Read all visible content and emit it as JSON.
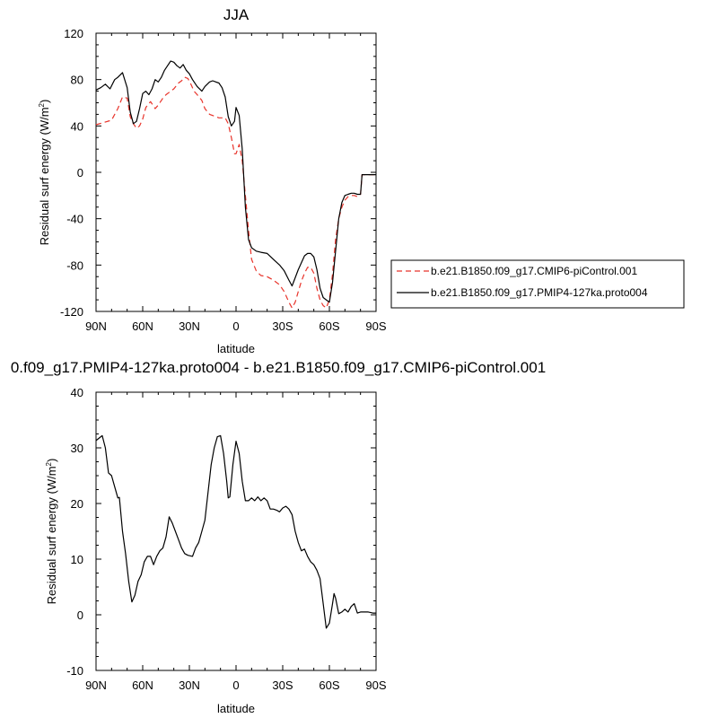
{
  "chart_data": [
    {
      "type": "line",
      "title": "JJA",
      "xlabel": "latitude",
      "ylabel": "Residual surf energy (W/m",
      "ylabel_sup": "2",
      "ylabel_close": ")",
      "xlim": [
        90,
        -90
      ],
      "ylim": [
        -120,
        120
      ],
      "x_ticks": [
        90,
        60,
        30,
        0,
        -30,
        -60,
        -90
      ],
      "x_tick_labels": [
        "90N",
        "60N",
        "30N",
        "0",
        "30S",
        "60S",
        "90S"
      ],
      "y_ticks": [
        -120,
        -80,
        -40,
        0,
        40,
        80,
        120
      ],
      "y_tick_labels": [
        "-120",
        "-80",
        "-40",
        "0",
        "40",
        "80",
        "120"
      ],
      "grid": false,
      "legend_position": "right-outside",
      "series": [
        {
          "name": "b.e21.B1850.f09_g17.CMIP6-piControl.001",
          "color": "#e8332a",
          "dash": true,
          "x": [
            90,
            85,
            80,
            76,
            73,
            70,
            68,
            66,
            64,
            62,
            60,
            58,
            55,
            52,
            50,
            47,
            45,
            42,
            40,
            37,
            35,
            33,
            31,
            29,
            27,
            25,
            22,
            20,
            17,
            15,
            13,
            11,
            9,
            7,
            5,
            3,
            1,
            0,
            -2,
            -4,
            -6,
            -8,
            -10,
            -13,
            -16,
            -20,
            -24,
            -28,
            -31,
            -34,
            -36,
            -38,
            -40,
            -42,
            -44,
            -46,
            -48,
            -50,
            -52,
            -54,
            -56,
            -58,
            -60,
            -62,
            -64,
            -66,
            -68,
            -70,
            -72,
            -74,
            -76,
            -78,
            -80,
            -81,
            -83,
            -86,
            -90
          ],
          "y": [
            41,
            43,
            45,
            55,
            65,
            64,
            48,
            42,
            38,
            40,
            46,
            56,
            61,
            55,
            58,
            64,
            67,
            70,
            72,
            77,
            79,
            82,
            81,
            76,
            70,
            67,
            62,
            55,
            50,
            49,
            48,
            47,
            47,
            47,
            42,
            30,
            16,
            16,
            24,
            10,
            -20,
            -50,
            -75,
            -85,
            -89,
            -90,
            -93,
            -97,
            -103,
            -112,
            -117,
            -112,
            -103,
            -94,
            -87,
            -82,
            -82,
            -87,
            -100,
            -110,
            -115,
            -117,
            -110,
            -88,
            -58,
            -40,
            -30,
            -24,
            -21,
            -20,
            -20,
            -21,
            -19,
            -2,
            -2,
            -2,
            -2
          ]
        },
        {
          "name": "b.e21.B1850.f09_g17.PMIP4-127ka.proto004",
          "color": "#000000",
          "dash": false,
          "x": [
            90,
            87,
            84,
            81,
            78,
            76,
            73,
            70,
            68,
            66,
            64,
            62,
            60,
            58,
            56,
            54,
            52,
            50,
            48,
            46,
            44,
            42,
            40,
            38,
            36,
            34,
            32,
            30,
            28,
            25,
            22,
            20,
            17,
            15,
            13,
            11,
            9,
            7,
            5,
            3,
            1,
            0,
            -2,
            -4,
            -6,
            -8,
            -10,
            -13,
            -16,
            -20,
            -24,
            -28,
            -31,
            -34,
            -36,
            -38,
            -40,
            -42,
            -44,
            -46,
            -48,
            -50,
            -52,
            -54,
            -56,
            -58,
            -60,
            -62,
            -64,
            -66,
            -68,
            -70,
            -72,
            -74,
            -76,
            -78,
            -80,
            -81,
            -83,
            -86,
            -90
          ],
          "y": [
            71,
            73,
            76,
            72,
            80,
            82,
            86,
            73,
            52,
            42,
            44,
            55,
            68,
            70,
            67,
            72,
            80,
            78,
            82,
            88,
            92,
            96,
            95,
            92,
            90,
            93,
            88,
            85,
            80,
            74,
            70,
            74,
            78,
            79,
            78,
            77,
            73,
            65,
            48,
            40,
            44,
            56,
            49,
            20,
            -30,
            -58,
            -65,
            -68,
            -69,
            -70,
            -75,
            -80,
            -85,
            -93,
            -98,
            -91,
            -84,
            -78,
            -72,
            -70,
            -70,
            -73,
            -84,
            -100,
            -108,
            -110,
            -112,
            -95,
            -68,
            -40,
            -26,
            -20,
            -19,
            -18,
            -18,
            -19,
            -19,
            -2,
            -2,
            -2,
            -2
          ]
        }
      ]
    },
    {
      "type": "line",
      "title": "0.f09_g17.PMIP4-127ka.proto004 - b.e21.B1850.f09_g17.CMIP6-piControl.001",
      "xlabel": "latitude",
      "ylabel": "Residual surf energy (W/m",
      "ylabel_sup": "2",
      "ylabel_close": ")",
      "xlim": [
        90,
        -90
      ],
      "ylim": [
        -10,
        40
      ],
      "x_ticks": [
        90,
        60,
        30,
        0,
        -30,
        -60,
        -90
      ],
      "x_tick_labels": [
        "90N",
        "60N",
        "30N",
        "0",
        "30S",
        "60S",
        "90S"
      ],
      "y_ticks": [
        -10,
        0,
        10,
        20,
        30,
        40
      ],
      "y_tick_labels": [
        "-10",
        "0",
        "10",
        "20",
        "30",
        "40"
      ],
      "grid": false,
      "series": [
        {
          "color": "#000000",
          "dash": false,
          "x": [
            90,
            86,
            84,
            82,
            80,
            78,
            76,
            75,
            73,
            71,
            69,
            67,
            65,
            63,
            61,
            59,
            57,
            55,
            53,
            51,
            49,
            47,
            45,
            43,
            41,
            39,
            37,
            35,
            33,
            31,
            28,
            26,
            24,
            22,
            20,
            18,
            16,
            14,
            12,
            10,
            8,
            6,
            5,
            4,
            2,
            0,
            -2,
            -4,
            -6,
            -8,
            -10,
            -12,
            -14,
            -16,
            -18,
            -20,
            -22,
            -24,
            -26,
            -28,
            -30,
            -32,
            -34,
            -36,
            -38,
            -40,
            -42,
            -44,
            -46,
            -48,
            -50,
            -52,
            -54,
            -56,
            -58,
            -60,
            -62,
            -63,
            -64,
            -66,
            -68,
            -70,
            -72,
            -74,
            -76,
            -78,
            -80,
            -82,
            -85,
            -88,
            -90
          ],
          "y": [
            31.3,
            32.2,
            30,
            25.5,
            25,
            23,
            21,
            21.1,
            15,
            11,
            6,
            2.3,
            3.5,
            6,
            7.2,
            9.5,
            10.5,
            10.5,
            9,
            10.5,
            11.5,
            12,
            14,
            17.6,
            16.5,
            15,
            13.5,
            12,
            11,
            10.7,
            10.5,
            12,
            13,
            15,
            17,
            22,
            27,
            30,
            32,
            32.2,
            29,
            24,
            21,
            21.2,
            27,
            31.2,
            29,
            24,
            20.5,
            20.5,
            21,
            20.5,
            21.2,
            20.5,
            21,
            20.5,
            19,
            19,
            18.8,
            18.5,
            19.2,
            19.5,
            19,
            18,
            15,
            13,
            11.5,
            11.8,
            10.5,
            9.5,
            9,
            8,
            6.5,
            2,
            -2.4,
            -1.5,
            2,
            3.8,
            3,
            0.2,
            0.5,
            1,
            0.5,
            1.5,
            2,
            0.3,
            0.5,
            0.5,
            0.5,
            0.3,
            0.3
          ]
        }
      ]
    }
  ]
}
